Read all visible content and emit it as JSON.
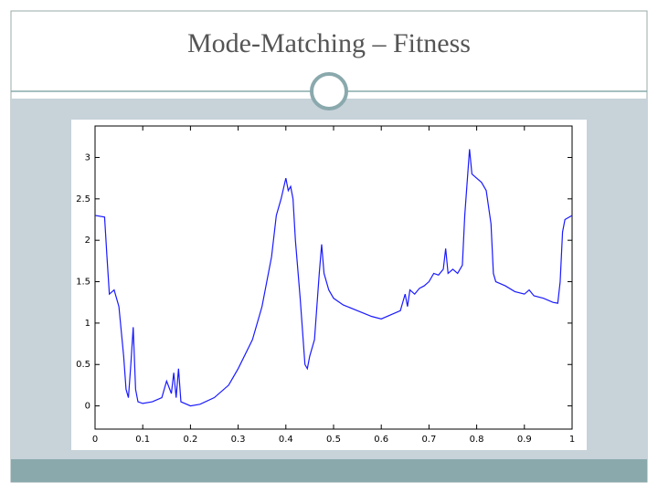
{
  "chart_data": {
    "type": "line",
    "title": "Mode-Matching – Fitness",
    "xlim": [
      0,
      1
    ],
    "ylim": [
      -0.28,
      3.38
    ],
    "xticks": [
      0,
      0.1,
      0.2,
      0.3,
      0.4,
      0.5,
      0.6,
      0.7,
      0.8,
      0.9,
      1
    ],
    "yticks": [
      0,
      0.5,
      1,
      1.5,
      2,
      2.5,
      3
    ],
    "series": [
      {
        "color": "#1a1aff",
        "x": [
          0,
          0.02,
          0.025,
          0.03,
          0.04,
          0.05,
          0.06,
          0.065,
          0.07,
          0.075,
          0.08,
          0.085,
          0.09,
          0.1,
          0.12,
          0.14,
          0.15,
          0.16,
          0.165,
          0.17,
          0.175,
          0.18,
          0.2,
          0.22,
          0.25,
          0.28,
          0.3,
          0.33,
          0.35,
          0.37,
          0.38,
          0.39,
          0.4,
          0.405,
          0.41,
          0.415,
          0.42,
          0.43,
          0.435,
          0.44,
          0.445,
          0.45,
          0.46,
          0.465,
          0.47,
          0.475,
          0.48,
          0.49,
          0.5,
          0.52,
          0.55,
          0.58,
          0.6,
          0.62,
          0.64,
          0.65,
          0.655,
          0.66,
          0.67,
          0.68,
          0.69,
          0.7,
          0.71,
          0.72,
          0.73,
          0.735,
          0.74,
          0.75,
          0.76,
          0.77,
          0.775,
          0.78,
          0.785,
          0.79,
          0.8,
          0.81,
          0.82,
          0.83,
          0.835,
          0.84,
          0.86,
          0.88,
          0.9,
          0.91,
          0.92,
          0.94,
          0.96,
          0.97,
          0.975,
          0.98,
          0.985,
          1
        ],
        "values": [
          2.3,
          2.28,
          1.8,
          1.35,
          1.4,
          1.2,
          0.6,
          0.2,
          0.1,
          0.5,
          0.95,
          0.2,
          0.05,
          0.03,
          0.05,
          0.1,
          0.3,
          0.15,
          0.4,
          0.1,
          0.45,
          0.05,
          0,
          0.02,
          0.1,
          0.25,
          0.45,
          0.8,
          1.2,
          1.8,
          2.3,
          2.5,
          2.75,
          2.6,
          2.65,
          2.5,
          2,
          1.3,
          0.9,
          0.5,
          0.45,
          0.6,
          0.8,
          1.2,
          1.6,
          1.95,
          1.6,
          1.4,
          1.3,
          1.22,
          1.15,
          1.08,
          1.05,
          1.1,
          1.15,
          1.35,
          1.2,
          1.4,
          1.35,
          1.42,
          1.45,
          1.5,
          1.6,
          1.58,
          1.65,
          1.9,
          1.6,
          1.65,
          1.6,
          1.7,
          2.3,
          2.7,
          3.1,
          2.8,
          2.75,
          2.7,
          2.6,
          2.2,
          1.6,
          1.5,
          1.45,
          1.38,
          1.35,
          1.4,
          1.33,
          1.3,
          1.25,
          1.24,
          1.5,
          2.1,
          2.25,
          2.3
        ]
      }
    ]
  }
}
